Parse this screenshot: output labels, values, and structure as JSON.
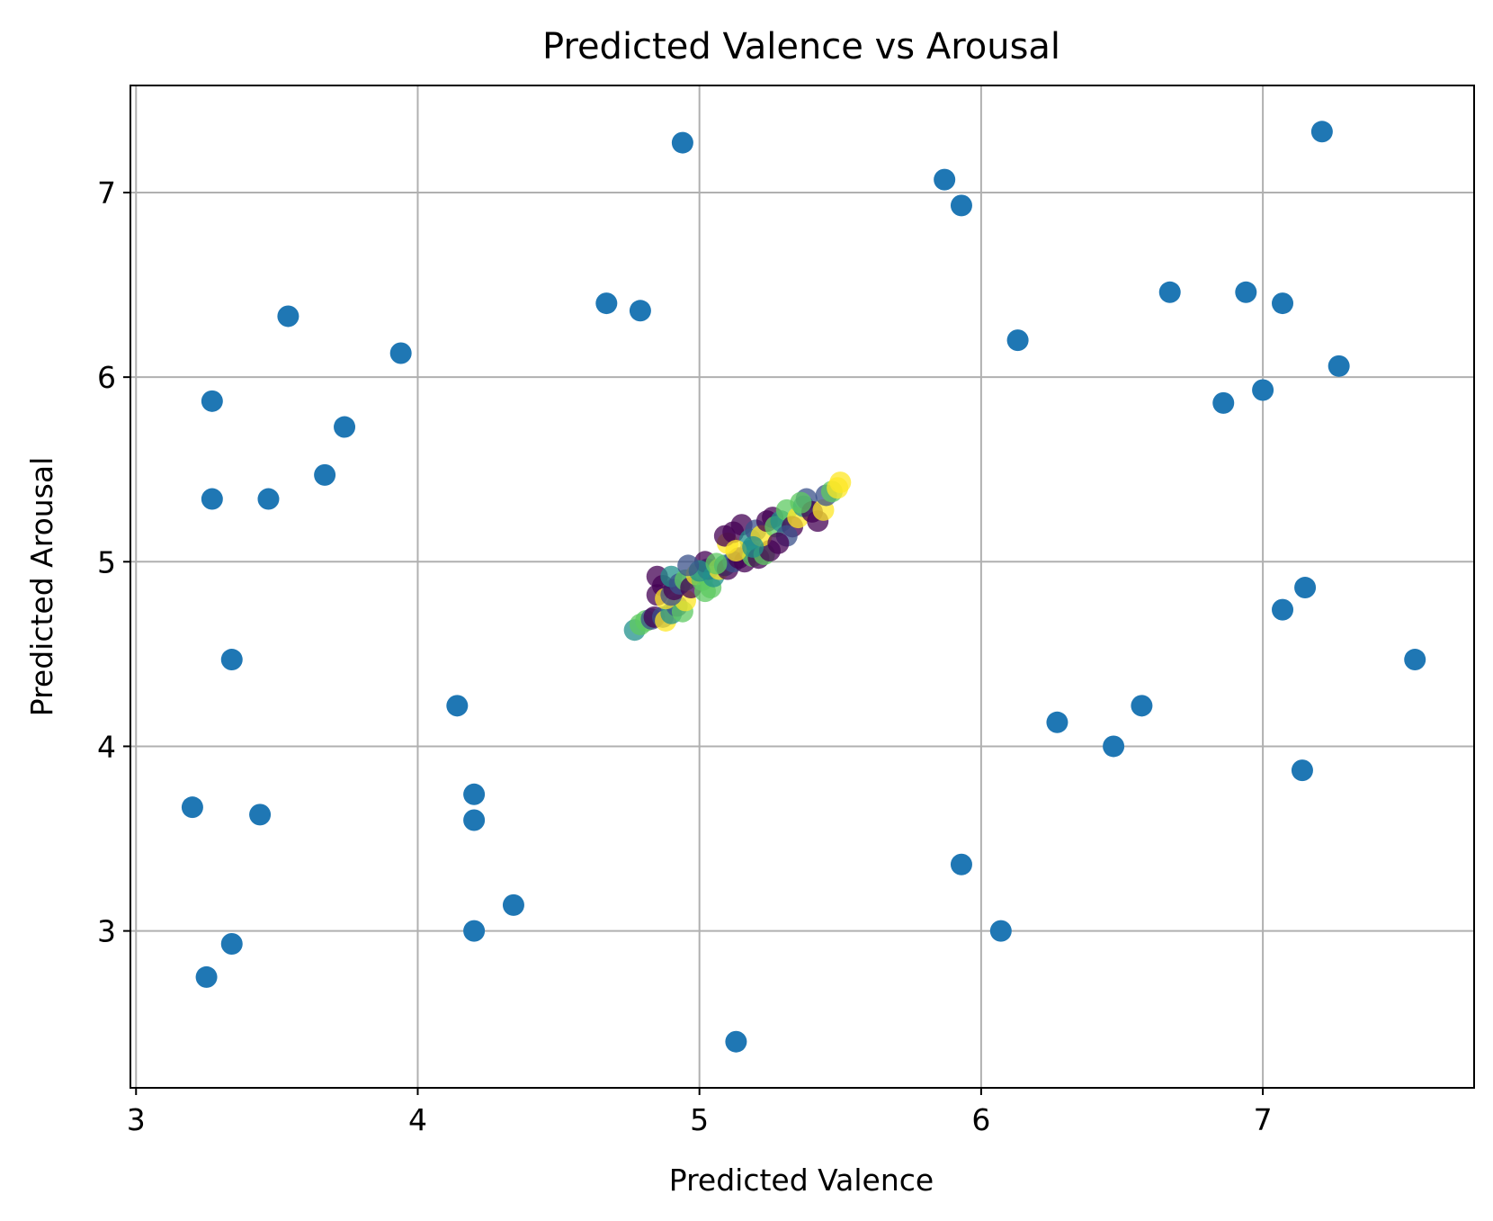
{
  "chart_data": {
    "type": "scatter",
    "title": "Predicted Valence vs Arousal",
    "xlabel": "Predicted Valence",
    "ylabel": "Predicted Arousal",
    "xlim": [
      2.98,
      7.75
    ],
    "ylim": [
      2.15,
      7.58
    ],
    "xticks": [
      3,
      4,
      5,
      6,
      7
    ],
    "yticks": [
      3,
      4,
      5,
      6,
      7
    ],
    "grid": true,
    "colors": {
      "scatter": "#1f77b4",
      "viridis": [
        "#440154",
        "#3b528b",
        "#21918c",
        "#5ec962",
        "#fde725"
      ]
    },
    "series": [
      {
        "color": "#1f77b4",
        "points": [
          [
            4.94,
            7.27
          ],
          [
            7.21,
            7.33
          ],
          [
            5.87,
            7.07
          ],
          [
            5.93,
            6.93
          ],
          [
            3.54,
            6.33
          ],
          [
            4.67,
            6.4
          ],
          [
            4.79,
            6.36
          ],
          [
            3.94,
            6.13
          ],
          [
            6.13,
            6.2
          ],
          [
            6.67,
            6.46
          ],
          [
            6.94,
            6.46
          ],
          [
            7.07,
            6.4
          ],
          [
            7.27,
            6.06
          ],
          [
            7.0,
            5.93
          ],
          [
            6.86,
            5.86
          ],
          [
            3.27,
            5.87
          ],
          [
            3.74,
            5.73
          ],
          [
            3.67,
            5.47
          ],
          [
            3.27,
            5.34
          ],
          [
            3.47,
            5.34
          ],
          [
            7.15,
            4.86
          ],
          [
            7.07,
            4.74
          ],
          [
            3.34,
            4.47
          ],
          [
            7.54,
            4.47
          ],
          [
            4.14,
            4.22
          ],
          [
            6.57,
            4.22
          ],
          [
            6.27,
            4.13
          ],
          [
            6.47,
            4.0
          ],
          [
            7.14,
            3.87
          ],
          [
            4.2,
            3.74
          ],
          [
            3.2,
            3.67
          ],
          [
            3.44,
            3.63
          ],
          [
            4.2,
            3.6
          ],
          [
            5.93,
            3.36
          ],
          [
            4.34,
            3.14
          ],
          [
            4.2,
            3.0
          ],
          [
            6.07,
            3.0
          ],
          [
            3.34,
            2.93
          ],
          [
            3.25,
            2.75
          ],
          [
            5.13,
            2.4
          ]
        ]
      },
      {
        "color": "viridis",
        "points": [
          [
            4.77,
            4.63,
            2
          ],
          [
            4.79,
            4.66,
            3
          ],
          [
            4.81,
            4.68,
            3
          ],
          [
            4.83,
            4.69,
            1
          ],
          [
            4.84,
            4.7,
            0
          ],
          [
            4.87,
            4.7,
            1
          ],
          [
            4.88,
            4.68,
            4
          ],
          [
            4.9,
            4.72,
            2
          ],
          [
            4.92,
            4.76,
            1
          ],
          [
            4.94,
            4.73,
            3
          ],
          [
            4.95,
            4.79,
            4
          ],
          [
            4.85,
            4.82,
            0
          ],
          [
            4.87,
            4.87,
            0
          ],
          [
            4.85,
            4.92,
            0
          ],
          [
            4.88,
            4.8,
            4
          ],
          [
            4.9,
            4.82,
            1
          ],
          [
            4.91,
            4.85,
            0
          ],
          [
            4.9,
            4.92,
            2
          ],
          [
            4.93,
            4.88,
            1
          ],
          [
            4.95,
            4.9,
            3
          ],
          [
            4.97,
            4.86,
            0
          ],
          [
            4.99,
            4.93,
            4
          ],
          [
            5.01,
            4.9,
            3
          ],
          [
            5.02,
            4.84,
            3
          ],
          [
            5.04,
            4.86,
            3
          ],
          [
            5.03,
            4.96,
            1
          ],
          [
            5.02,
            5.0,
            0
          ],
          [
            5.05,
            4.92,
            2
          ],
          [
            5.07,
            4.96,
            4
          ],
          [
            5.09,
            4.98,
            2
          ],
          [
            5.1,
            4.96,
            0
          ],
          [
            5.12,
            5.0,
            1
          ],
          [
            5.14,
            5.02,
            0
          ],
          [
            5.16,
            5.0,
            0
          ],
          [
            5.18,
            5.06,
            1
          ],
          [
            5.19,
            5.03,
            3
          ],
          [
            5.21,
            5.02,
            0
          ],
          [
            5.23,
            5.04,
            3
          ],
          [
            5.25,
            5.06,
            0
          ],
          [
            5.1,
            5.1,
            4
          ],
          [
            5.09,
            5.14,
            0
          ],
          [
            5.12,
            5.16,
            0
          ],
          [
            5.15,
            5.2,
            0
          ],
          [
            5.18,
            5.12,
            2
          ],
          [
            5.2,
            5.17,
            1
          ],
          [
            5.22,
            5.14,
            4
          ],
          [
            5.24,
            5.22,
            0
          ],
          [
            5.26,
            5.24,
            0
          ],
          [
            5.27,
            5.19,
            3
          ],
          [
            5.29,
            5.22,
            2
          ],
          [
            5.31,
            5.28,
            3
          ],
          [
            5.33,
            5.19,
            0
          ],
          [
            5.35,
            5.24,
            4
          ],
          [
            5.37,
            5.3,
            2
          ],
          [
            5.38,
            5.34,
            1
          ],
          [
            5.4,
            5.27,
            0
          ],
          [
            5.42,
            5.22,
            0
          ],
          [
            5.44,
            5.28,
            4
          ],
          [
            5.45,
            5.36,
            1
          ],
          [
            5.47,
            5.38,
            3
          ],
          [
            5.49,
            5.4,
            4
          ],
          [
            5.5,
            5.43,
            4
          ],
          [
            5.31,
            5.14,
            1
          ],
          [
            5.28,
            5.1,
            0
          ],
          [
            5.36,
            5.32,
            3
          ],
          [
            5.0,
            4.95,
            2
          ],
          [
            4.96,
            4.98,
            1
          ],
          [
            5.06,
            4.99,
            3
          ],
          [
            5.13,
            5.06,
            4
          ],
          [
            5.19,
            5.08,
            2
          ]
        ]
      }
    ]
  }
}
